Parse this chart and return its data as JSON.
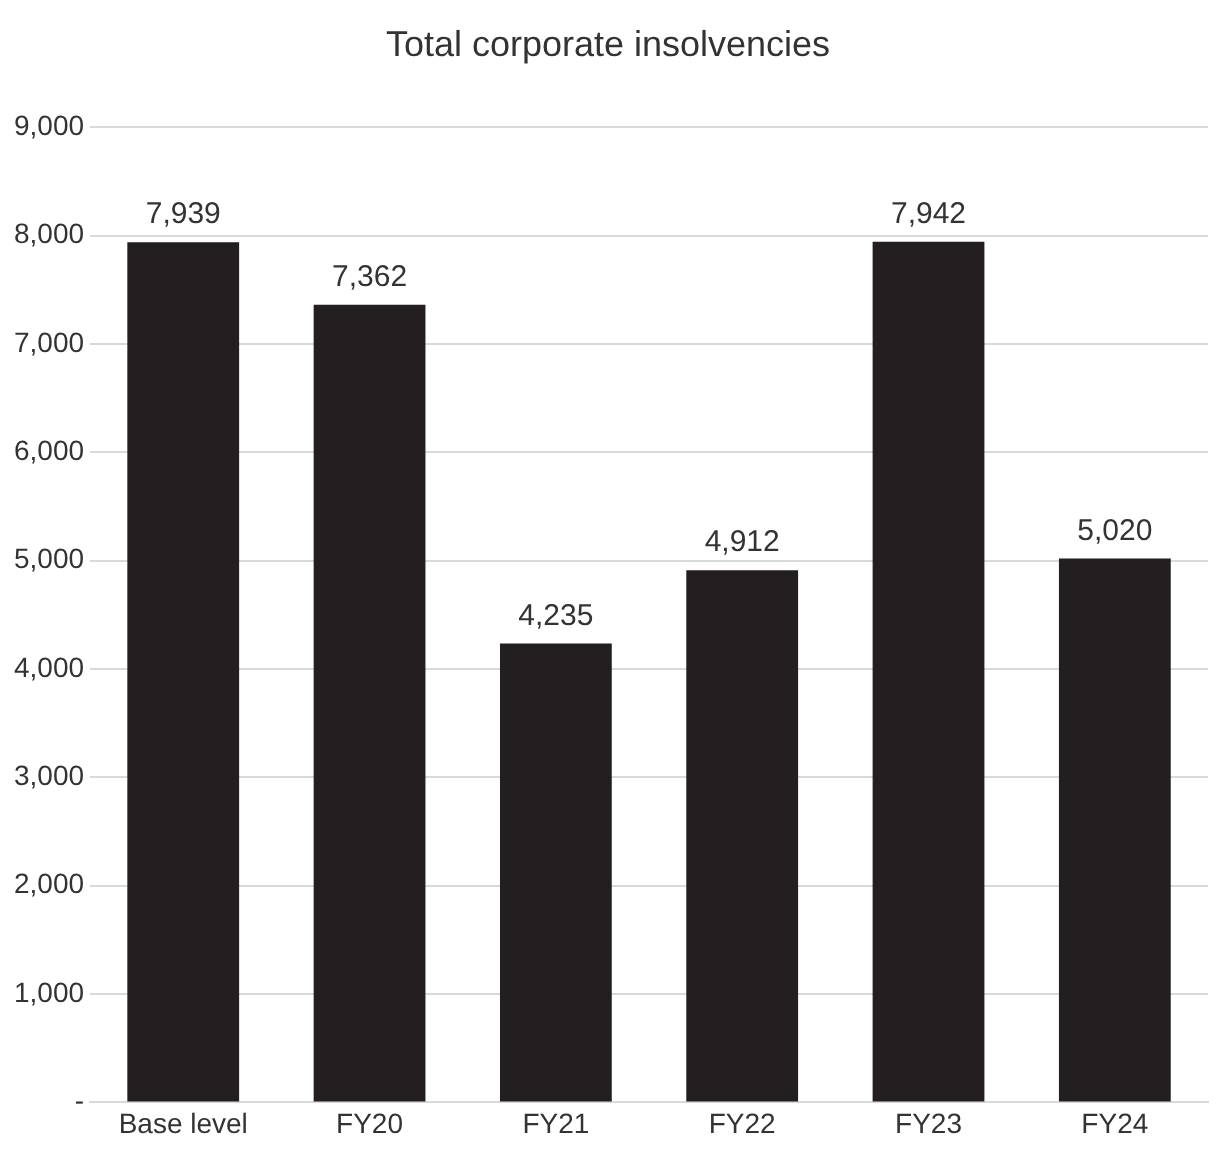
{
  "chart_data": {
    "type": "bar",
    "title": "Total corporate insolvencies",
    "categories": [
      "Base level",
      "FY20",
      "FY21",
      "FY22",
      "FY23",
      "FY24"
    ],
    "values": [
      7939,
      7362,
      4235,
      4912,
      7942,
      5020
    ],
    "value_labels": [
      "7,939",
      "7,362",
      "4,235",
      "4,912",
      "7,942",
      "5,020"
    ],
    "color": "#231f20",
    "ylim": [
      0,
      9000
    ],
    "yticks": [
      {
        "value": 0,
        "label": "-"
      },
      {
        "value": 1000,
        "label": "1,000"
      },
      {
        "value": 2000,
        "label": "2,000"
      },
      {
        "value": 3000,
        "label": "3,000"
      },
      {
        "value": 4000,
        "label": "4,000"
      },
      {
        "value": 5000,
        "label": "5,000"
      },
      {
        "value": 6000,
        "label": "6,000"
      },
      {
        "value": 7000,
        "label": "7,000"
      },
      {
        "value": 8000,
        "label": "8,000"
      },
      {
        "value": 9000,
        "label": "9,000"
      }
    ],
    "grid": "y",
    "legend": false
  }
}
